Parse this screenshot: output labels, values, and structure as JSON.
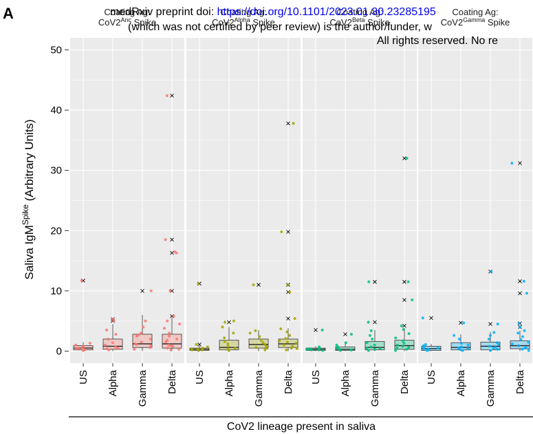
{
  "figure_label": "A",
  "watermark": {
    "line1_prefix": "medRxiv preprint doi: ",
    "line1_url": "https://doi.org/10.1101/2023.01.30.23285195",
    "line2": "(which was not certified by peer review) is the author/funder, w",
    "line3": "All rights reserved. No re"
  },
  "colors": {
    "panel_bg": "#ebebeb",
    "gridline": "#ffffff",
    "watermark_url": "#0000ee",
    "series": [
      "#f8766d",
      "#a3a500",
      "#00bf7d",
      "#00b0f6"
    ]
  },
  "chart_data": {
    "type": "boxplot",
    "ylabel_main": "Saliva IgM",
    "ylabel_sup": "Spike",
    "ylabel_suffix": " (Arbitrary Units)",
    "xlabel": "CoV2 lineage present in saliva",
    "categories": [
      "US",
      "Alpha",
      "Gamma",
      "Delta"
    ],
    "yticks": [
      0,
      10,
      20,
      30,
      40,
      50
    ],
    "ylim": [
      -2,
      52
    ],
    "grid": true,
    "legend": "none",
    "panels": [
      {
        "title_line1": "Coating Ag:",
        "title_pre": "CoV2",
        "title_sup": "Anc",
        "title_post": " Spike",
        "boxes": [
          {
            "min": 0,
            "q1": 0.2,
            "median": 0.5,
            "q3": 0.9,
            "max": 1.5,
            "outliers": [
              11.7
            ],
            "points": [
              0.1,
              0.3,
              0.4,
              0.5,
              0.6,
              0.8,
              1.0,
              1.3,
              0.2,
              11.7
            ]
          },
          {
            "min": 0,
            "q1": 0.3,
            "median": 0.8,
            "q3": 2.0,
            "max": 4.5,
            "outliers": [
              5.0,
              5.3
            ],
            "points": [
              0.2,
              0.5,
              0.7,
              1.0,
              1.4,
              2.0,
              2.8,
              3.5,
              5.0,
              5.3,
              0.4
            ]
          },
          {
            "min": 0,
            "q1": 0.6,
            "median": 1.2,
            "q3": 2.8,
            "max": 6.0,
            "outliers": [
              10.0
            ],
            "points": [
              0.3,
              0.6,
              0.9,
              1.2,
              1.5,
              2.0,
              2.5,
              3.0,
              4.0,
              5.0,
              2.7,
              1.1,
              10.0
            ]
          },
          {
            "min": 0,
            "q1": 0.5,
            "median": 1.2,
            "q3": 2.8,
            "max": 5.5,
            "outliers": [
              5.8,
              10.0,
              16.3,
              18.5,
              42.4
            ],
            "points": [
              0.2,
              0.5,
              0.8,
              1.0,
              1.5,
              2.0,
              2.5,
              3.0,
              3.8,
              4.5,
              5.0,
              0.3,
              0.9,
              1.8,
              5.8,
              10.0,
              16.3,
              16.5,
              18.5,
              42.4
            ]
          }
        ]
      },
      {
        "title_line1": "Coating Ag:",
        "title_pre": "CoV2",
        "title_sup": "Alpha",
        "title_post": " Spike",
        "boxes": [
          {
            "min": 0,
            "q1": 0.1,
            "median": 0.3,
            "q3": 0.5,
            "max": 0.9,
            "outliers": [
              1.1,
              11.2
            ],
            "points": [
              0.1,
              0.2,
              0.3,
              0.4,
              0.5,
              0.2,
              0.7,
              1.1,
              11.2
            ]
          },
          {
            "min": 0,
            "q1": 0.2,
            "median": 0.6,
            "q3": 1.8,
            "max": 4.0,
            "outliers": [
              4.8
            ],
            "points": [
              0.1,
              0.3,
              0.5,
              0.8,
              1.2,
              1.6,
              2.2,
              3.0,
              4.0,
              4.8,
              5.0
            ]
          },
          {
            "min": 0,
            "q1": 0.5,
            "median": 1.1,
            "q3": 2.0,
            "max": 3.5,
            "outliers": [
              11.0
            ],
            "points": [
              0.2,
              0.5,
              0.8,
              1.1,
              1.4,
              1.8,
              2.4,
              3.0,
              3.4,
              0.6,
              11.0
            ]
          },
          {
            "min": 0,
            "q1": 0.6,
            "median": 1.2,
            "q3": 2.0,
            "max": 3.8,
            "outliers": [
              5.4,
              9.8,
              11.0,
              19.8,
              37.8
            ],
            "points": [
              0.2,
              0.5,
              0.8,
              1.0,
              1.3,
              1.7,
              2.1,
              2.6,
              3.2,
              3.7,
              0.4,
              1.5,
              5.4,
              9.8,
              11.0,
              19.8,
              37.8
            ]
          }
        ]
      },
      {
        "title_line1": "Coating Ag:",
        "title_pre": "CoV2",
        "title_sup": "Beta",
        "title_post": " Spike",
        "boxes": [
          {
            "min": 0,
            "q1": 0.1,
            "median": 0.3,
            "q3": 0.5,
            "max": 0.8,
            "outliers": [
              3.5
            ],
            "points": [
              0.1,
              0.2,
              0.3,
              0.4,
              0.5,
              0.7,
              0.2,
              3.5
            ]
          },
          {
            "min": 0,
            "q1": 0.1,
            "median": 0.3,
            "q3": 0.7,
            "max": 1.5,
            "outliers": [
              2.8
            ],
            "points": [
              0.1,
              0.2,
              0.3,
              0.5,
              0.7,
              1.0,
              1.4,
              0.2,
              2.8
            ]
          },
          {
            "min": 0,
            "q1": 0.2,
            "median": 0.6,
            "q3": 1.6,
            "max": 3.5,
            "outliers": [
              4.8,
              11.5
            ],
            "points": [
              0.1,
              0.3,
              0.5,
              0.7,
              1.0,
              1.4,
              2.0,
              2.6,
              3.4,
              0.4,
              4.8,
              11.5
            ]
          },
          {
            "min": 0,
            "q1": 0.3,
            "median": 0.9,
            "q3": 1.8,
            "max": 3.8,
            "outliers": [
              4.2,
              8.5,
              11.5,
              32.0
            ],
            "points": [
              0.1,
              0.3,
              0.5,
              0.8,
              1.0,
              1.3,
              1.7,
              2.2,
              2.9,
              3.6,
              0.6,
              4.2,
              8.5,
              11.5,
              32.0
            ]
          }
        ]
      },
      {
        "title_line1": "Coating Ag:",
        "title_pre": "CoV2",
        "title_sup": "Gamma",
        "title_post": " Spike",
        "boxes": [
          {
            "min": 0,
            "q1": 0.1,
            "median": 0.4,
            "q3": 0.8,
            "max": 1.2,
            "outliers": [
              5.5
            ],
            "points": [
              0.1,
              0.2,
              0.4,
              0.5,
              0.7,
              0.9,
              1.1,
              0.3,
              5.5
            ]
          },
          {
            "min": 0,
            "q1": 0.2,
            "median": 0.6,
            "q3": 1.4,
            "max": 2.8,
            "outliers": [
              4.7
            ],
            "points": [
              0.1,
              0.3,
              0.5,
              0.7,
              1.0,
              1.3,
              2.0,
              2.6,
              0.4,
              4.7
            ]
          },
          {
            "min": 0,
            "q1": 0.2,
            "median": 0.8,
            "q3": 1.5,
            "max": 3.2,
            "outliers": [
              4.5,
              13.2
            ],
            "points": [
              0.1,
              0.3,
              0.5,
              0.8,
              1.1,
              1.4,
              2.0,
              2.6,
              3.1,
              0.6,
              4.5,
              13.2
            ]
          },
          {
            "min": 0,
            "q1": 0.4,
            "median": 0.9,
            "q3": 1.7,
            "max": 3.4,
            "outliers": [
              4.0,
              4.6,
              9.6,
              11.6,
              31.2
            ],
            "points": [
              0.1,
              0.3,
              0.6,
              0.9,
              1.2,
              1.5,
              1.9,
              2.4,
              3.0,
              3.4,
              0.5,
              4.0,
              4.6,
              9.6,
              11.6,
              31.2
            ]
          }
        ]
      }
    ]
  }
}
